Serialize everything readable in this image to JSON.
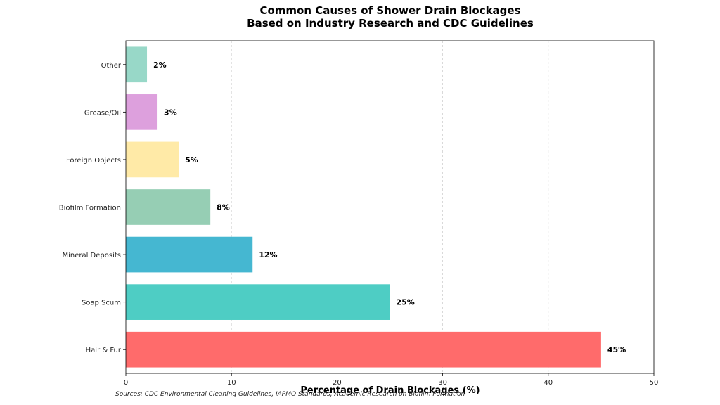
{
  "chart_data": {
    "type": "bar",
    "orientation": "horizontal",
    "title": [
      "Common Causes of Shower Drain Blockages",
      "Based on Industry Research and CDC Guidelines"
    ],
    "xlabel": "Percentage of Drain Blockages (%)",
    "ylabel": "",
    "xlim": [
      0,
      50
    ],
    "xticks": [
      0,
      10,
      20,
      30,
      40,
      50
    ],
    "grid": "vertical dashed",
    "categories": [
      "Hair & Fur",
      "Soap Scum",
      "Mineral Deposits",
      "Biofilm Formation",
      "Foreign Objects",
      "Grease/Oil",
      "Other"
    ],
    "values": [
      45,
      25,
      12,
      8,
      5,
      3,
      2
    ],
    "value_labels": [
      "45%",
      "25%",
      "12%",
      "8%",
      "5%",
      "3%",
      "2%"
    ],
    "colors": [
      "#ff6b6b",
      "#4ecdc4",
      "#45b7d1",
      "#96ceb4",
      "#ffeaa7",
      "#dda0dd",
      "#98d8c8"
    ]
  },
  "source": "Sources: CDC Environmental Cleaning Guidelines, IAPMO Standards, Academic Research on Biofilm Formation"
}
